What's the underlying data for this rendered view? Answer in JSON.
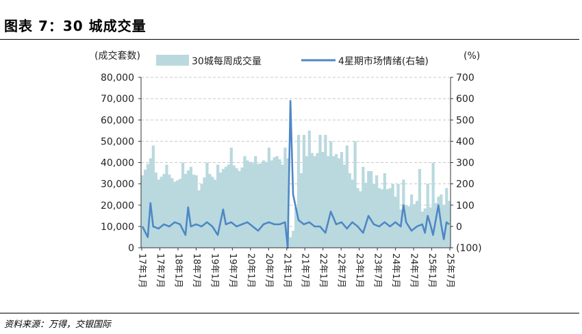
{
  "header": {
    "title": "图表 7：30 城成交量"
  },
  "footer": {
    "source": "资料来源：万得，交银国际"
  },
  "chart_data": {
    "type": "bar+line",
    "title": "",
    "left_axis_label": "(成交套数)",
    "right_axis_label": "(%)",
    "left_ticks": [
      "80,000",
      "70,000",
      "60,000",
      "50,000",
      "40,000",
      "30,000",
      "20,000",
      "10,000",
      "0"
    ],
    "right_ticks": [
      "700",
      "600",
      "500",
      "400",
      "300",
      "200",
      "100",
      "0",
      "(100)"
    ],
    "ylim_left": [
      0,
      80000
    ],
    "ylim_right": [
      -100,
      700
    ],
    "x_ticks": [
      "17年1月",
      "17年7月",
      "18年1月",
      "18年7月",
      "19年1月",
      "19年7月",
      "20年1月",
      "20年7月",
      "21年1月",
      "21年7月",
      "22年1月",
      "22年7月",
      "23年1月",
      "23年7月",
      "24年1月",
      "24年7月",
      "25年1月",
      "25年7月"
    ],
    "series": [
      {
        "name": "30城每周成交量",
        "kind": "bar",
        "axis": "left",
        "color": "#b9d9df",
        "anchors": [
          [
            0,
            34000
          ],
          [
            3,
            42000
          ],
          [
            6,
            32000
          ],
          [
            9,
            36000
          ],
          [
            12,
            31000
          ],
          [
            15,
            33000
          ],
          [
            18,
            38000
          ],
          [
            21,
            27000
          ],
          [
            24,
            36000
          ],
          [
            27,
            32000
          ],
          [
            30,
            37000
          ],
          [
            33,
            40000
          ],
          [
            36,
            36000
          ],
          [
            39,
            41000
          ],
          [
            42,
            39000
          ],
          [
            45,
            40000
          ],
          [
            48,
            41000
          ],
          [
            50,
            44000
          ],
          [
            52,
            39000
          ],
          [
            54,
            42000
          ],
          [
            55,
            5000
          ],
          [
            56,
            8000
          ],
          [
            58,
            30000
          ],
          [
            60,
            40000
          ],
          [
            62,
            46000
          ],
          [
            64,
            43000
          ],
          [
            66,
            46000
          ],
          [
            68,
            44000
          ],
          [
            70,
            42000
          ],
          [
            72,
            44000
          ],
          [
            74,
            40000
          ],
          [
            76,
            38000
          ],
          [
            78,
            32000
          ],
          [
            80,
            28000
          ],
          [
            82,
            25000
          ],
          [
            84,
            36000
          ],
          [
            86,
            30000
          ],
          [
            88,
            28000
          ],
          [
            90,
            27000
          ],
          [
            92,
            28000
          ],
          [
            94,
            24000
          ],
          [
            96,
            18000
          ],
          [
            98,
            20000
          ],
          [
            100,
            19000
          ],
          [
            102,
            22000
          ],
          [
            104,
            17000
          ],
          [
            106,
            20000
          ],
          [
            108,
            18000
          ],
          [
            110,
            24000
          ],
          [
            112,
            20000
          ],
          [
            114,
            22000
          ]
        ],
        "spikes": [
          [
            4,
            48000
          ],
          [
            9,
            39000
          ],
          [
            15,
            40000
          ],
          [
            20,
            34000
          ],
          [
            24,
            40000
          ],
          [
            28,
            39000
          ],
          [
            33,
            47000
          ],
          [
            38,
            43000
          ],
          [
            42,
            43000
          ],
          [
            45,
            41000
          ],
          [
            47,
            47000
          ],
          [
            50,
            43000
          ],
          [
            53,
            47000
          ],
          [
            58,
            53000
          ],
          [
            60,
            53000
          ],
          [
            62,
            55000
          ],
          [
            66,
            53000
          ],
          [
            68,
            53000
          ],
          [
            70,
            50000
          ],
          [
            74,
            45000
          ],
          [
            76,
            48000
          ],
          [
            79,
            50000
          ],
          [
            82,
            38000
          ],
          [
            85,
            36000
          ],
          [
            87,
            34000
          ],
          [
            90,
            35000
          ],
          [
            93,
            30000
          ],
          [
            95,
            30000
          ],
          [
            97,
            32000
          ],
          [
            100,
            25000
          ],
          [
            103,
            37000
          ],
          [
            106,
            30000
          ],
          [
            108,
            40000
          ],
          [
            111,
            25000
          ],
          [
            113,
            28000
          ]
        ]
      },
      {
        "name": "4星期市场情绪(右轴)",
        "kind": "line",
        "axis": "right",
        "color": "#4e87c4",
        "anchors": [
          [
            0,
            0
          ],
          [
            2,
            -50
          ],
          [
            3,
            110
          ],
          [
            4,
            0
          ],
          [
            6,
            -10
          ],
          [
            8,
            10
          ],
          [
            10,
            0
          ],
          [
            12,
            20
          ],
          [
            14,
            10
          ],
          [
            16,
            -40
          ],
          [
            17,
            90
          ],
          [
            18,
            0
          ],
          [
            20,
            10
          ],
          [
            22,
            0
          ],
          [
            24,
            20
          ],
          [
            26,
            0
          ],
          [
            28,
            -40
          ],
          [
            30,
            80
          ],
          [
            31,
            10
          ],
          [
            33,
            20
          ],
          [
            35,
            0
          ],
          [
            37,
            10
          ],
          [
            39,
            20
          ],
          [
            41,
            0
          ],
          [
            43,
            -20
          ],
          [
            45,
            10
          ],
          [
            47,
            20
          ],
          [
            49,
            10
          ],
          [
            51,
            10
          ],
          [
            53,
            20
          ],
          [
            54,
            -100
          ],
          [
            55,
            590
          ],
          [
            56,
            150
          ],
          [
            58,
            30
          ],
          [
            60,
            10
          ],
          [
            62,
            20
          ],
          [
            64,
            0
          ],
          [
            66,
            0
          ],
          [
            68,
            -30
          ],
          [
            70,
            70
          ],
          [
            72,
            10
          ],
          [
            74,
            20
          ],
          [
            76,
            -10
          ],
          [
            78,
            20
          ],
          [
            80,
            0
          ],
          [
            82,
            -30
          ],
          [
            84,
            50
          ],
          [
            86,
            10
          ],
          [
            88,
            0
          ],
          [
            90,
            20
          ],
          [
            92,
            0
          ],
          [
            94,
            20
          ],
          [
            96,
            0
          ],
          [
            97,
            100
          ],
          [
            98,
            20
          ],
          [
            100,
            -20
          ],
          [
            102,
            0
          ],
          [
            104,
            10
          ],
          [
            105,
            -30
          ],
          [
            106,
            50
          ],
          [
            107,
            10
          ],
          [
            108,
            -40
          ],
          [
            110,
            100
          ],
          [
            111,
            10
          ],
          [
            112,
            -60
          ],
          [
            113,
            20
          ],
          [
            114,
            10
          ]
        ]
      }
    ],
    "n_points": 115,
    "legend_position": "top",
    "grid": "horizontal dashed"
  }
}
